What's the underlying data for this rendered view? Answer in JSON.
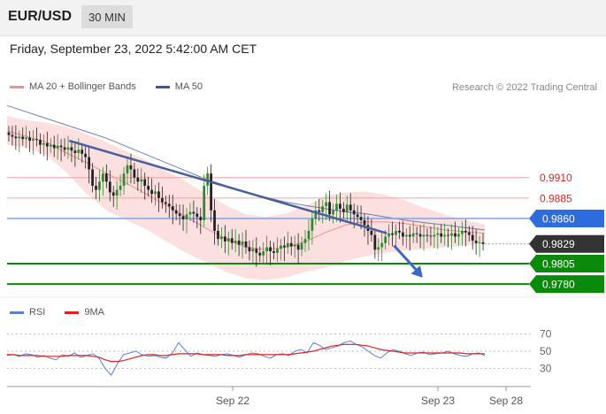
{
  "header": {
    "symbol": "EUR/USD",
    "timeframe": "30 MIN",
    "datetime": "Friday, September 23, 2022 5:42:00 AM CET"
  },
  "legend": {
    "bollinger": {
      "label": "MA 20 + Bollinger Bands",
      "color": "#f08f8f"
    },
    "ma50": {
      "label": "MA 50",
      "color": "#3b5998"
    },
    "credit": "Research © 2022 Trading Central"
  },
  "rsi_legend": {
    "rsi": {
      "label": "RSI",
      "color": "#5b7fd4"
    },
    "ma9": {
      "label": "9MA",
      "color": "#e02020"
    }
  },
  "chart_data": {
    "type": "line",
    "price_range": [
      0.9765,
      1.0008
    ],
    "levels": [
      {
        "value": 0.991,
        "label": "0.9910",
        "kind": "resistance",
        "color": "#e02020",
        "badge": false
      },
      {
        "value": 0.9885,
        "label": "0.9885",
        "kind": "resistance",
        "color": "#e02020",
        "badge": false
      },
      {
        "value": 0.986,
        "label": "0.9860",
        "kind": "pivot",
        "color": "#2e6bdc",
        "badge": true
      },
      {
        "value": 0.9829,
        "label": "0.9829",
        "kind": "last",
        "color": "#333333",
        "badge": true
      },
      {
        "value": 0.9805,
        "label": "0.9805",
        "kind": "support",
        "color": "#0a8a0a",
        "badge": true
      },
      {
        "value": 0.978,
        "label": "0.9780",
        "kind": "support",
        "color": "#0a8a0a",
        "badge": true
      }
    ],
    "x_ticks": [
      "Sep 22",
      "Sep 23",
      "Sep 28"
    ],
    "close_series": [
      0.9962,
      0.996,
      0.9958,
      0.996,
      0.9957,
      0.9959,
      0.9955,
      0.9957,
      0.9956,
      0.995,
      0.9952,
      0.9948,
      0.995,
      0.9946,
      0.9949,
      0.9947,
      0.9944,
      0.9947,
      0.9943,
      0.994,
      0.9944,
      0.9939,
      0.9935,
      0.992,
      0.99,
      0.9895,
      0.9905,
      0.9915,
      0.9905,
      0.9892,
      0.9888,
      0.9895,
      0.99,
      0.9915,
      0.9925,
      0.992,
      0.991,
      0.9905,
      0.9908,
      0.99,
      0.9895,
      0.989,
      0.9893,
      0.9885,
      0.988,
      0.9878,
      0.9875,
      0.987,
      0.9866,
      0.9863,
      0.9859,
      0.9865,
      0.9868,
      0.9866,
      0.9862,
      0.9858,
      0.99,
      0.9915,
      0.987,
      0.9845,
      0.9835,
      0.9838,
      0.9832,
      0.9836,
      0.983,
      0.9833,
      0.9828,
      0.9832,
      0.9825,
      0.982,
      0.9823,
      0.9818,
      0.9815,
      0.982,
      0.9825,
      0.982,
      0.9818,
      0.9823,
      0.9827,
      0.9825,
      0.983,
      0.9826,
      0.9828,
      0.9822,
      0.983,
      0.9835,
      0.9845,
      0.986,
      0.987,
      0.9868,
      0.9875,
      0.988,
      0.9865,
      0.987,
      0.9878,
      0.9872,
      0.9868,
      0.9877,
      0.987,
      0.9865,
      0.9862,
      0.9858,
      0.9852,
      0.9845,
      0.984,
      0.9822,
      0.9825,
      0.983,
      0.9838,
      0.9842,
      0.984,
      0.9845,
      0.9843,
      0.9838,
      0.984,
      0.9838,
      0.9842,
      0.9841,
      0.9838,
      0.984,
      0.9839,
      0.9838,
      0.984,
      0.9842,
      0.9838,
      0.984,
      0.9839,
      0.9842,
      0.9838,
      0.9841,
      0.9845,
      0.9843,
      0.984,
      0.9833,
      0.983,
      0.9831,
      0.9829
    ],
    "ma50": [
      0.9998,
      0.999,
      0.9982,
      0.9974,
      0.9966,
      0.9958,
      0.9948,
      0.9938,
      0.9928,
      0.9918,
      0.9908,
      0.99,
      0.9892,
      0.9886,
      0.988,
      0.9876,
      0.9872,
      0.9868,
      0.9866,
      0.9862,
      0.9858,
      0.9855,
      0.9852,
      0.9849,
      0.9846
    ],
    "ma20": [
      0.9967,
      0.996,
      0.9953,
      0.994,
      0.9928,
      0.9915,
      0.9903,
      0.989,
      0.9876,
      0.9862,
      0.9848,
      0.9835,
      0.9825,
      0.9822,
      0.9825,
      0.9832,
      0.9843,
      0.9852,
      0.9856,
      0.9856,
      0.9854,
      0.985,
      0.9846,
      0.9844,
      0.9842
    ],
    "bollinger_upper": [
      0.9985,
      0.998,
      0.9977,
      0.9972,
      0.9963,
      0.9953,
      0.9942,
      0.9931,
      0.9918,
      0.9905,
      0.989,
      0.9876,
      0.9865,
      0.9862,
      0.9866,
      0.9875,
      0.9888,
      0.9892,
      0.9893,
      0.9889,
      0.9882,
      0.9873,
      0.9865,
      0.9858,
      0.9853
    ],
    "bollinger_lower": [
      0.995,
      0.9946,
      0.9937,
      0.9916,
      0.989,
      0.987,
      0.9858,
      0.9847,
      0.9832,
      0.9818,
      0.9806,
      0.9795,
      0.9787,
      0.9785,
      0.9788,
      0.9795,
      0.98,
      0.9808,
      0.9814,
      0.9818,
      0.9821,
      0.9823,
      0.9825,
      0.9827,
      0.9829
    ],
    "trendline": [
      [
        0.13,
        0.9955
      ],
      [
        0.795,
        0.9842
      ]
    ],
    "forecast_arrow": [
      [
        0.81,
        0.9827
      ],
      [
        0.87,
        0.9788
      ]
    ],
    "rsi": {
      "y_ticks": [
        30,
        50,
        70
      ],
      "range": [
        18,
        80
      ],
      "rsi_values": [
        45,
        46,
        44,
        47,
        46,
        43,
        45,
        42,
        40,
        46,
        44,
        48,
        43,
        45,
        47,
        42,
        30,
        22,
        35,
        46,
        48,
        50,
        46,
        44,
        45,
        43,
        42,
        48,
        60,
        52,
        44,
        48,
        46,
        45,
        44,
        46,
        47,
        45,
        43,
        46,
        48,
        47,
        44,
        42,
        46,
        47,
        45,
        50,
        52,
        48,
        60,
        57,
        52,
        54,
        56,
        60,
        62,
        58,
        55,
        50,
        45,
        42,
        48,
        52,
        50,
        47,
        45,
        48,
        49,
        46,
        47,
        48,
        50,
        47,
        45,
        44,
        47,
        48,
        45
      ],
      "ma9_values": [
        46,
        46,
        45,
        45,
        45,
        45,
        44,
        44,
        44,
        44,
        45,
        45,
        45,
        45,
        44,
        43,
        40,
        38,
        38,
        39,
        41,
        43,
        45,
        46,
        46,
        45,
        45,
        46,
        47,
        47,
        47,
        47,
        46,
        46,
        46,
        46,
        45,
        45,
        45,
        46,
        46,
        46,
        46,
        46,
        46,
        46,
        46,
        47,
        48,
        49,
        50,
        52,
        54,
        56,
        57,
        58,
        58,
        58,
        57,
        56,
        54,
        52,
        51,
        50,
        49,
        48,
        48,
        48,
        48,
        48,
        48,
        48,
        48,
        48,
        48,
        47,
        47,
        47,
        47
      ]
    }
  }
}
